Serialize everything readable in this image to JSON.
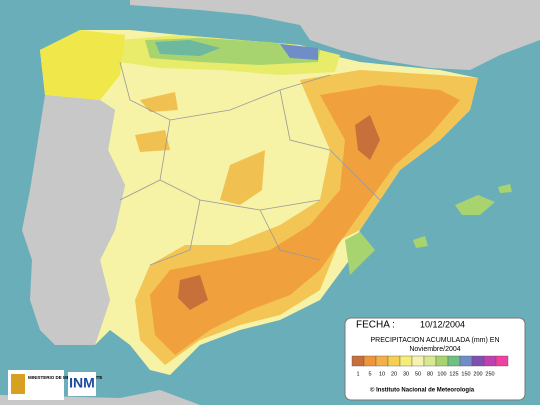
{
  "legend": {
    "date_label": "FECHA :",
    "date": "10/12/2004",
    "title": "PRECIPITACION ACUMULADA (mm) EN",
    "period": "Noviembre/2004",
    "colors": [
      "#c8703a",
      "#f0963a",
      "#f3b048",
      "#f5d050",
      "#f6ec78",
      "#f6f2b0",
      "#d6e890",
      "#a8d470",
      "#70c080",
      "#6f8ec8",
      "#8050b0",
      "#c040b0",
      "#f040a0"
    ],
    "ticks": [
      1,
      5,
      10,
      20,
      30,
      50,
      80,
      100,
      125,
      150,
      200,
      250
    ],
    "credit": "© Instituto Nacional de Meteorología"
  },
  "logos": {
    "ministry": "MINISTERIO DE MEDIO AMBIENTE",
    "agency": "INM"
  }
}
